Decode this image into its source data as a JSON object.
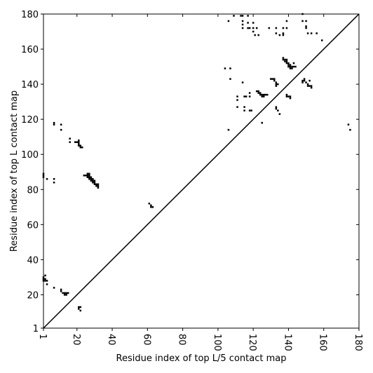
{
  "chart_data": {
    "type": "scatter",
    "xlabel": "Residue index of top L/5 contact map",
    "ylabel": "Residue index of top L contact map",
    "xlim": [
      1,
      180
    ],
    "ylim": [
      1,
      180
    ],
    "xticks": [
      1,
      20,
      40,
      60,
      80,
      100,
      120,
      140,
      160,
      180
    ],
    "yticks": [
      1,
      20,
      40,
      60,
      80,
      100,
      120,
      140,
      160,
      180
    ],
    "diagonal": true,
    "color": "#000000",
    "x": [
      1,
      1,
      1,
      3,
      7,
      7,
      7,
      7,
      11,
      11,
      16,
      16,
      19,
      20,
      21,
      21,
      21,
      21,
      22,
      22,
      23,
      25,
      26,
      26,
      27,
      27,
      26,
      27,
      27,
      28,
      28,
      28,
      29,
      29,
      29,
      30,
      30,
      30,
      31,
      31,
      32,
      32,
      32,
      24,
      61,
      62,
      62,
      63,
      1,
      1,
      1,
      2,
      2,
      2,
      3,
      3,
      7,
      11,
      11,
      12,
      13,
      13,
      14,
      14,
      15,
      21,
      21,
      22,
      22,
      106,
      109,
      113,
      114,
      114,
      114,
      114,
      117,
      117,
      117,
      118,
      120,
      120,
      120,
      121,
      122,
      123,
      129,
      133,
      133,
      135,
      137,
      137,
      137,
      139,
      139,
      148,
      148,
      150,
      150,
      150,
      151,
      153,
      156,
      159,
      104,
      107,
      107,
      114,
      111,
      111,
      111,
      115,
      116,
      115,
      115,
      118,
      118,
      118,
      119,
      122,
      123,
      123,
      124,
      124,
      125,
      125,
      126,
      126,
      127,
      128,
      130,
      131,
      132,
      132,
      133,
      133,
      133,
      134,
      133,
      133,
      134,
      135,
      125,
      137,
      137,
      138,
      138,
      139,
      139,
      139,
      140,
      140,
      141,
      141,
      142,
      142,
      143,
      143,
      144,
      140,
      141,
      139,
      139,
      140,
      141,
      141,
      148,
      148,
      149,
      149,
      150,
      151,
      151,
      152,
      152,
      153,
      153,
      174,
      175,
      106
    ],
    "values": [
      87,
      88,
      89,
      86,
      117,
      118,
      84,
      86,
      117,
      114,
      109,
      107,
      107,
      107,
      107,
      108,
      106,
      105,
      105,
      104,
      104,
      88,
      88,
      89,
      89,
      88,
      87,
      87,
      86,
      87,
      86,
      85,
      86,
      85,
      84,
      85,
      84,
      83,
      83,
      82,
      83,
      82,
      81,
      88,
      72,
      71,
      70,
      70,
      28,
      29,
      30,
      29,
      28,
      31,
      28,
      26,
      24,
      22,
      23,
      21,
      21,
      20,
      21,
      20,
      21,
      13,
      12,
      13,
      11,
      176,
      179,
      179,
      179,
      176,
      174,
      172,
      179,
      175,
      172,
      172,
      175,
      172,
      170,
      168,
      172,
      168,
      172,
      172,
      169,
      168,
      169,
      168,
      172,
      172,
      176,
      180,
      176,
      176,
      173,
      172,
      169,
      169,
      169,
      165,
      149,
      149,
      143,
      141,
      133,
      131,
      127,
      133,
      133,
      127,
      125,
      135,
      133,
      125,
      125,
      136,
      136,
      135,
      135,
      134,
      134,
      133,
      133,
      134,
      134,
      134,
      143,
      143,
      143,
      142,
      141,
      140,
      139,
      140,
      127,
      126,
      125,
      123,
      118,
      155,
      154,
      154,
      153,
      154,
      153,
      152,
      152,
      151,
      151,
      150,
      150,
      149,
      150,
      152,
      150,
      150,
      149,
      134,
      133,
      133,
      133,
      132,
      142,
      141,
      143,
      142,
      141,
      140,
      139,
      142,
      139,
      139,
      138,
      117,
      114,
      114
    ]
  }
}
